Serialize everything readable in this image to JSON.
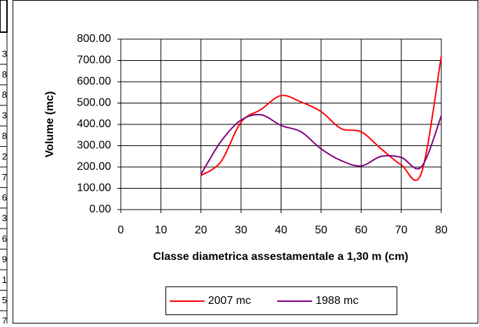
{
  "clipped_column": [
    "3",
    "8",
    "8",
    "3",
    "8",
    "2",
    "7",
    "6",
    "3",
    "6",
    "9",
    "1",
    "5",
    "7"
  ],
  "chart_data": {
    "type": "line",
    "xlabel": "Classe diametrica assestamentale a 1,30 m (cm)",
    "ylabel": "Volume (mc)",
    "xlim": [
      0,
      80
    ],
    "xticks": [
      0,
      10,
      20,
      30,
      40,
      50,
      60,
      70,
      80
    ],
    "ylim": [
      0,
      800
    ],
    "yticks": [
      {
        "value": 0,
        "label": "0.00"
      },
      {
        "value": 100,
        "label": "100.00"
      },
      {
        "value": 200,
        "label": "200.00"
      },
      {
        "value": 300,
        "label": "300.00"
      },
      {
        "value": 400,
        "label": "400.00"
      },
      {
        "value": 500,
        "label": "500.00"
      },
      {
        "value": 600,
        "label": "600.00"
      },
      {
        "value": 700,
        "label": "700.00"
      },
      {
        "value": 800,
        "label": "800.00"
      }
    ],
    "grid": true,
    "smooth": true,
    "legend": "bottom",
    "x": [
      20,
      25,
      30,
      35,
      40,
      45,
      50,
      55,
      60,
      65,
      70,
      75,
      80
    ],
    "series": [
      {
        "name": "2007 mc",
        "color": "#ff0000",
        "values": [
          160,
          225,
          410,
          470,
          535,
          505,
          460,
          380,
          365,
          285,
          210,
          170,
          720
        ]
      },
      {
        "name": "1988 mc",
        "color": "#800080",
        "values": [
          165,
          320,
          420,
          445,
          395,
          365,
          285,
          230,
          205,
          250,
          245,
          200,
          440
        ]
      }
    ]
  }
}
